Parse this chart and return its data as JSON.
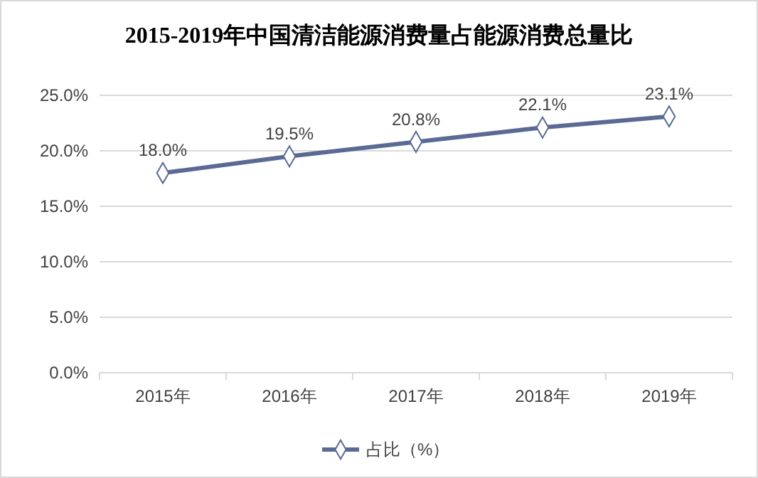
{
  "chart_data": {
    "type": "line",
    "title": "2015-2019年中国清洁能源消费量占能源消费总量比",
    "categories": [
      "2015年",
      "2016年",
      "2017年",
      "2018年",
      "2019年"
    ],
    "series": [
      {
        "name": "占比（%）",
        "color": "#5b6a94",
        "values": [
          18.0,
          19.5,
          20.8,
          22.1,
          23.1
        ],
        "value_labels": [
          "18.0%",
          "19.5%",
          "20.8%",
          "22.1%",
          "23.1%"
        ]
      }
    ],
    "ylim": [
      0,
      25
    ],
    "yticks": [
      {
        "value": 0,
        "label": "0.0%"
      },
      {
        "value": 5,
        "label": "5.0%"
      },
      {
        "value": 10,
        "label": "10.0%"
      },
      {
        "value": 15,
        "label": "15.0%"
      },
      {
        "value": 20,
        "label": "20.0%"
      },
      {
        "value": 25,
        "label": "25.0%"
      }
    ],
    "grid": "y",
    "legend": "bottom",
    "marker": "diamond",
    "line_style": "solid"
  }
}
